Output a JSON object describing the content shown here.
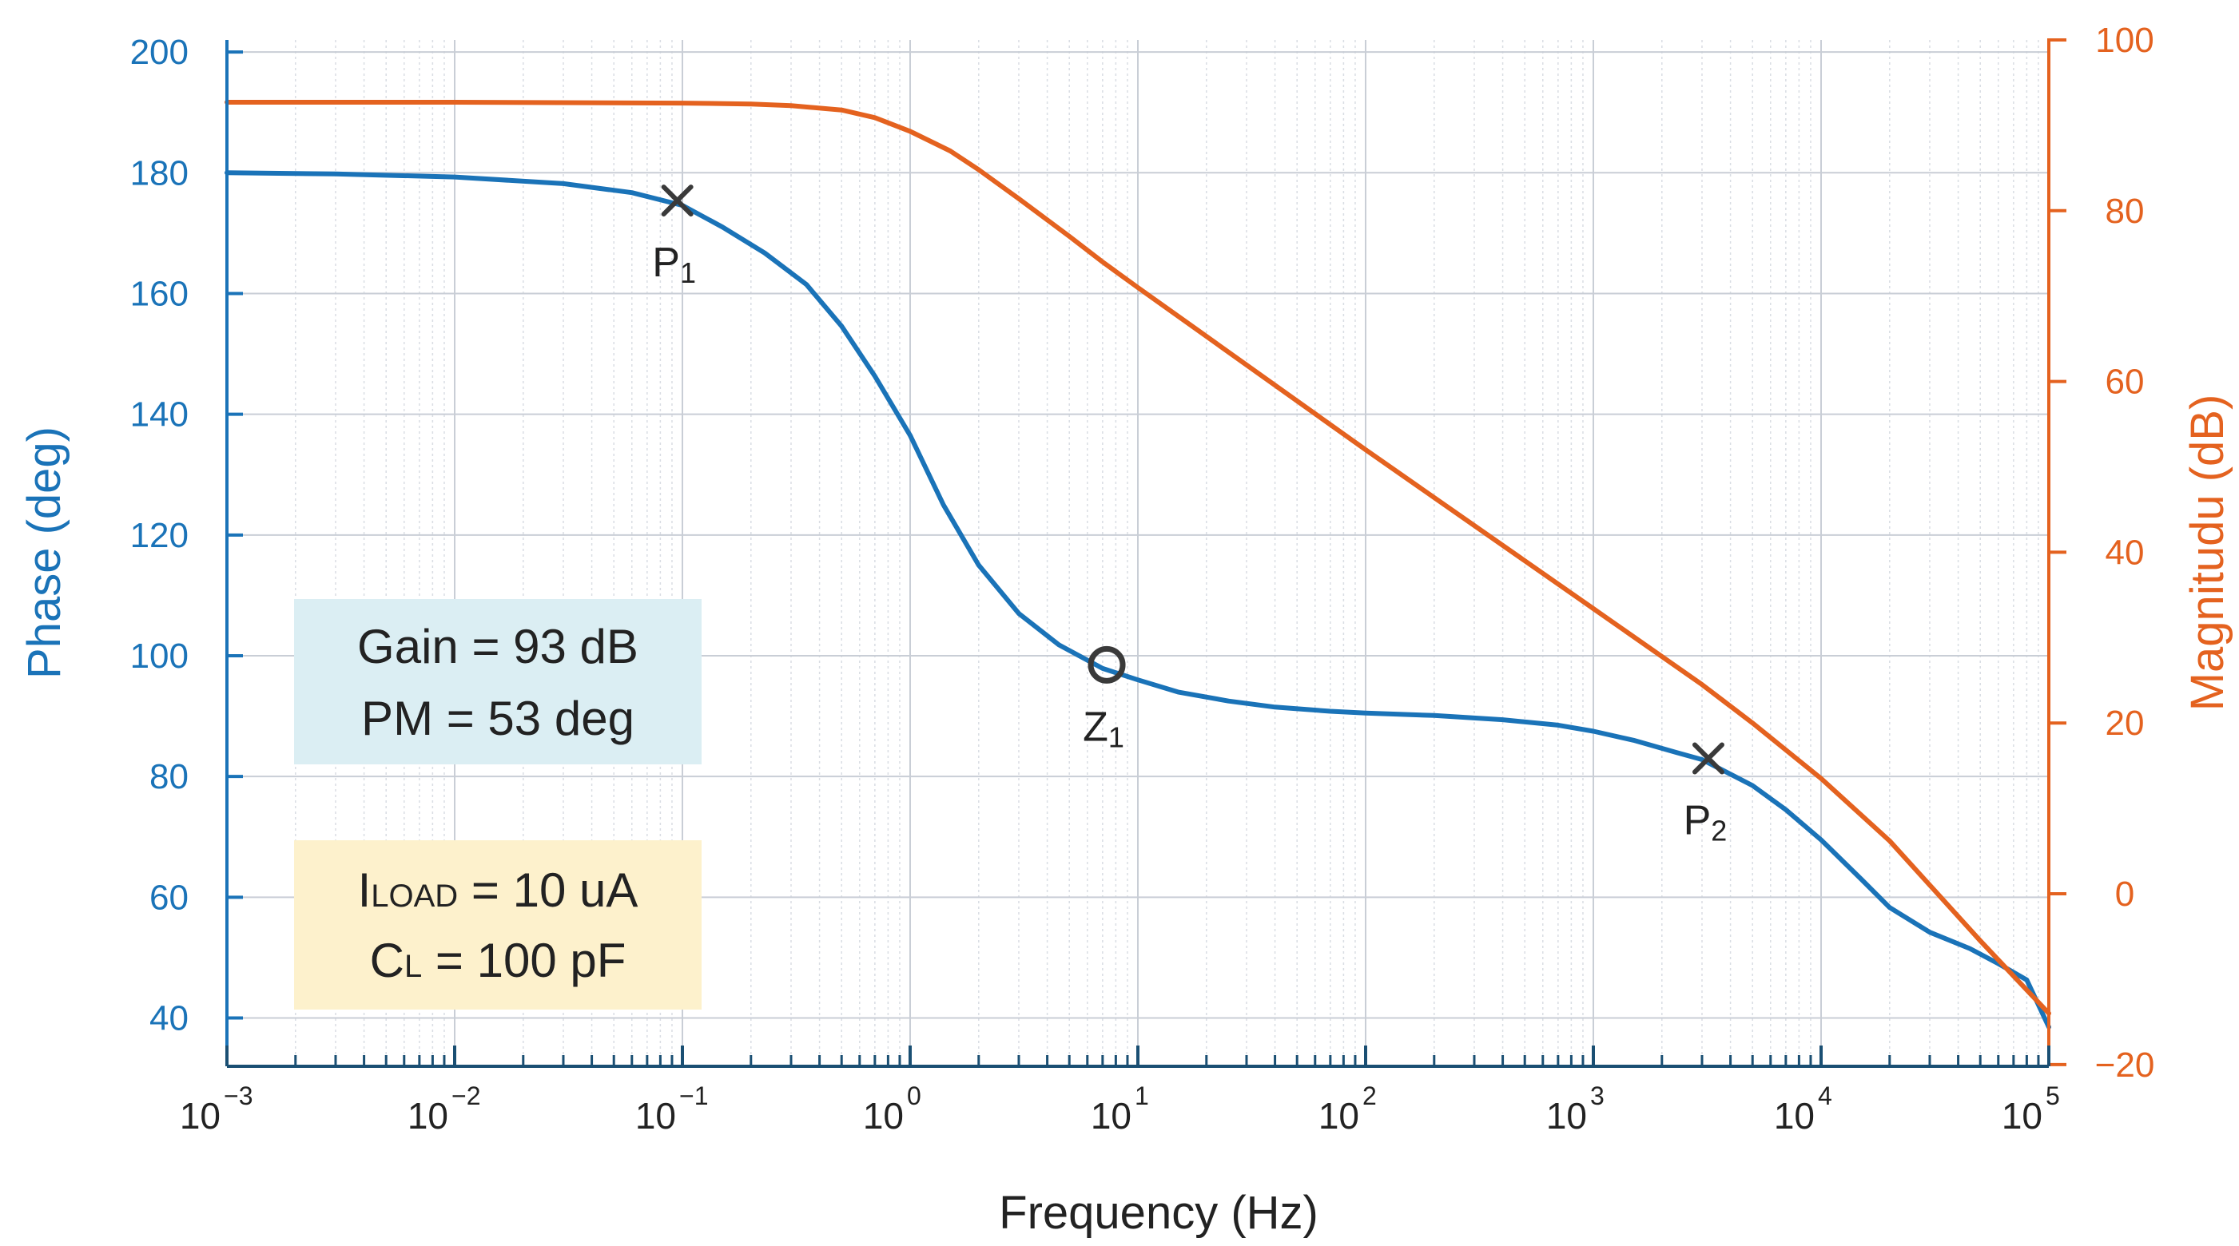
{
  "chart_data": {
    "type": "line",
    "xscale": "log",
    "xlim": [
      0.001,
      100000
    ],
    "xlabel": "Frequency (Hz)",
    "xtick_labels": [
      {
        "base": "10",
        "exp": "−3"
      },
      {
        "base": "10",
        "exp": "−2"
      },
      {
        "base": "10",
        "exp": "−1"
      },
      {
        "base": "10",
        "exp": "0"
      },
      {
        "base": "10",
        "exp": "1"
      },
      {
        "base": "10",
        "exp": "2"
      },
      {
        "base": "10",
        "exp": "3"
      },
      {
        "base": "10",
        "exp": "4"
      },
      {
        "base": "10",
        "exp": "5"
      }
    ],
    "left_axis": {
      "label": "Phase (deg)",
      "ylim": [
        32,
        202
      ],
      "ticks": [
        40,
        60,
        80,
        100,
        120,
        140,
        160,
        180,
        200
      ],
      "tick_labels": [
        "40",
        "60",
        "80",
        "100",
        "120",
        "140",
        "160",
        "180",
        "200"
      ],
      "color": "#1a73b8"
    },
    "right_axis": {
      "label": "Magnitudu (dB)",
      "ylim": [
        -20.2,
        100
      ],
      "ticks": [
        -20,
        0,
        20,
        40,
        60,
        80,
        100
      ],
      "tick_labels": [
        "−20",
        "0",
        "20",
        "40",
        "60",
        "80",
        "100"
      ],
      "color": "#e4621f"
    },
    "grid": true,
    "series": [
      {
        "name": "Phase",
        "axis": "left",
        "color": "#1a73b8",
        "x": [
          0.001,
          0.003,
          0.01,
          0.03,
          0.06,
          0.1,
          0.15,
          0.23,
          0.35,
          0.5,
          0.7,
          1.0,
          1.4,
          2.0,
          3.0,
          4.5,
          7.0,
          10,
          15,
          25,
          40,
          70,
          100,
          200,
          400,
          700,
          1000,
          1500,
          2300,
          3000,
          3500,
          5000,
          7000,
          10000,
          15000,
          20000,
          30000,
          45000,
          60000,
          80000,
          100000
        ],
        "y": [
          180,
          179.8,
          179.3,
          178.2,
          176.7,
          174.6,
          171.0,
          166.7,
          161.5,
          154.6,
          146.3,
          136.5,
          125.0,
          115.0,
          107.0,
          101.8,
          97.9,
          96.0,
          94.0,
          92.5,
          91.5,
          90.8,
          90.5,
          90.1,
          89.4,
          88.5,
          87.5,
          86.0,
          84.0,
          82.8,
          81.5,
          78.5,
          74.5,
          69.5,
          63.0,
          58.3,
          54.2,
          51.5,
          49.0,
          46.3,
          38.5
        ]
      },
      {
        "name": "Magnitude",
        "axis": "right",
        "color": "#e4621f",
        "x": [
          0.001,
          0.01,
          0.1,
          0.2,
          0.3,
          0.5,
          0.7,
          1.0,
          1.5,
          2.0,
          3.0,
          5.0,
          7.0,
          10,
          100,
          1000,
          3000,
          5000,
          10000,
          20000,
          50000,
          100000
        ],
        "y": [
          92.7,
          92.7,
          92.6,
          92.5,
          92.3,
          91.8,
          90.9,
          89.3,
          87.0,
          84.8,
          81.4,
          77.0,
          74.0,
          71.0,
          52.0,
          33.4,
          24.5,
          20.0,
          13.5,
          6.2,
          -5.5,
          -14.0
        ]
      }
    ],
    "annotations": [
      {
        "label": "P",
        "sub": "1",
        "marker": "x",
        "x": 0.095,
        "y": 175.4,
        "axis": "left"
      },
      {
        "label": "Z",
        "sub": "1",
        "marker": "o",
        "x": 7.3,
        "y": 98.5,
        "axis": "left"
      },
      {
        "label": "P",
        "sub": "2",
        "marker": "x",
        "x": 3200,
        "y": 83.0,
        "axis": "left"
      }
    ],
    "text_boxes": [
      {
        "lines": [
          "Gain = 93 dB",
          "PM = 53 deg"
        ],
        "bg": "#dbeef3"
      },
      {
        "lines": [
          {
            "a": "I",
            "sub": "LOAD",
            "b": " = 10 uA"
          },
          {
            "a": "C",
            "sub": "L",
            "b": " = 100 pF"
          }
        ],
        "bg": "#fdf1cc"
      }
    ]
  }
}
